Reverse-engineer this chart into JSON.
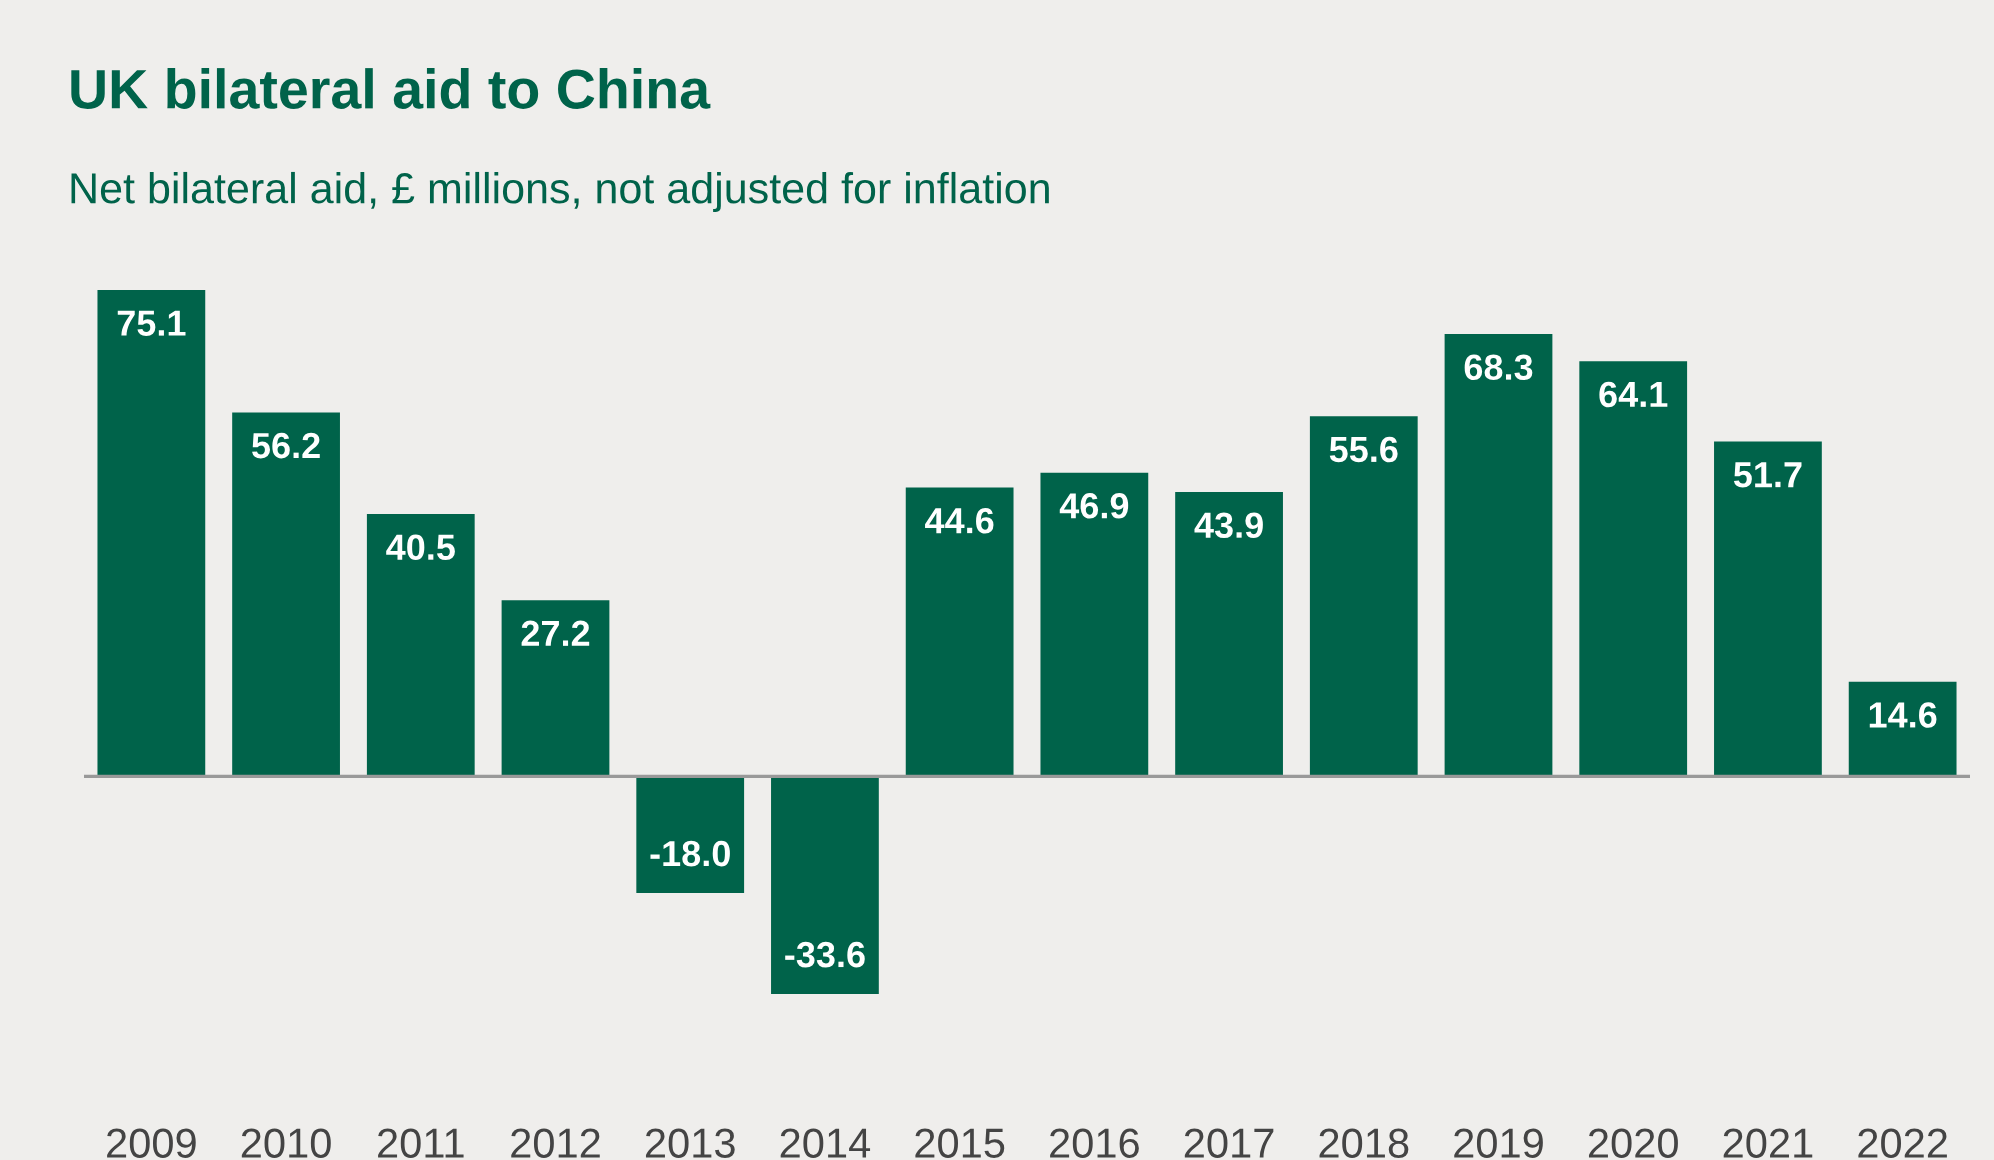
{
  "chart_data": {
    "type": "bar",
    "title": "UK bilateral aid to China",
    "subtitle": "Net bilateral aid, £ millions, not adjusted for inflation",
    "categories": [
      "2009",
      "2010",
      "2011",
      "2012",
      "2013",
      "2014",
      "2015",
      "2016",
      "2017",
      "2018",
      "2019",
      "2020",
      "2021",
      "2022"
    ],
    "values": [
      75.1,
      56.2,
      40.5,
      27.2,
      -18.0,
      -33.6,
      44.6,
      46.9,
      43.9,
      55.6,
      68.3,
      64.1,
      51.7,
      14.6
    ],
    "value_labels": [
      "75.1",
      "56.2",
      "40.5",
      "27.2",
      "-18.0",
      "-33.6",
      "44.6",
      "46.9",
      "43.9",
      "55.6",
      "68.3",
      "64.1",
      "51.7",
      "14.6"
    ],
    "color": "#00634a",
    "grid": false,
    "legend": false
  }
}
